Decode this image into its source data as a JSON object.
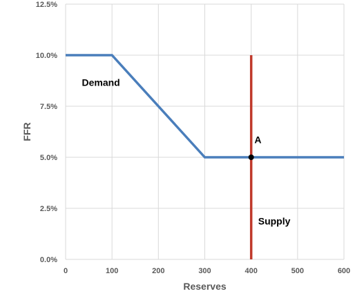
{
  "chart_data": {
    "type": "line",
    "xlabel": "Reserves",
    "ylabel": "FFR",
    "xlim": [
      0,
      600
    ],
    "ylim": [
      0,
      12.5
    ],
    "x_ticks": [
      0,
      100,
      200,
      300,
      400,
      500,
      600
    ],
    "y_ticks": [
      0,
      2.5,
      5,
      7.5,
      10,
      12.5
    ],
    "x_tick_labels": [
      "0",
      "100",
      "200",
      "300",
      "400",
      "500",
      "600"
    ],
    "y_tick_labels": [
      "0.0%",
      "2.5%",
      "5.0%",
      "7.5%",
      "10.0%",
      "12.5%"
    ],
    "grid": true,
    "series": [
      {
        "points": [
          [
            0,
            10
          ],
          [
            100,
            10
          ],
          [
            300,
            5
          ],
          [
            600,
            5
          ]
        ],
        "color": "#4a7ebb"
      },
      {
        "points": [
          [
            400,
            0
          ],
          [
            400,
            10
          ]
        ],
        "color": "#c0392b"
      }
    ],
    "annotations": [
      {
        "text": "Demand",
        "x": 35,
        "y": 8.5
      },
      {
        "text": "Supply",
        "x": 415,
        "y": 1.7
      },
      {
        "text": "A",
        "x": 407,
        "y": 5.7
      }
    ],
    "markers": [
      {
        "x": 400,
        "y": 5,
        "color": "#000000"
      }
    ]
  }
}
